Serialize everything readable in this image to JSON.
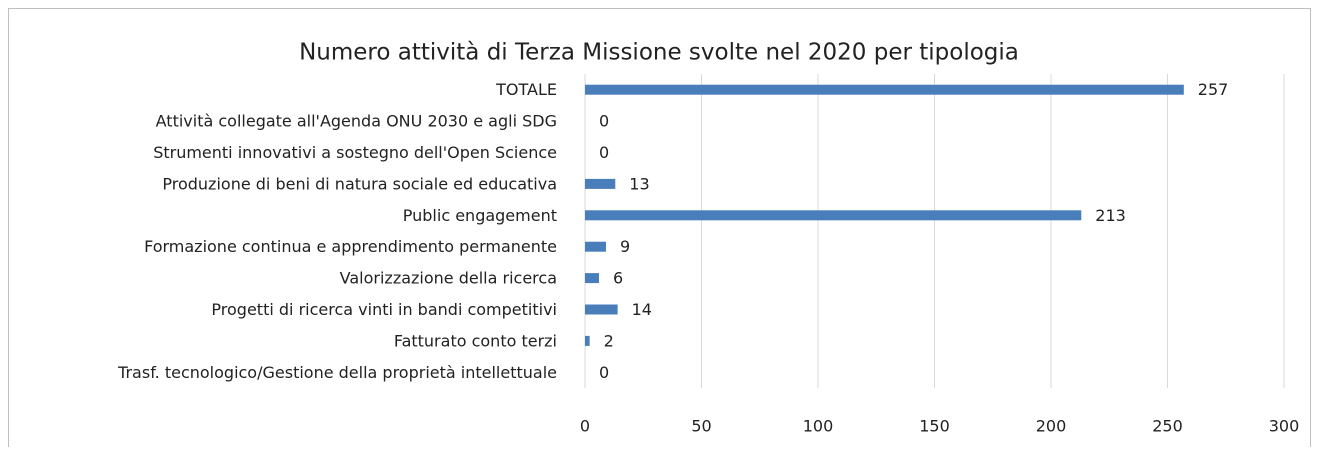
{
  "chart_data": {
    "type": "bar",
    "orientation": "horizontal",
    "title": "Numero attività di Terza Missione svolte nel 2020 per tipologia",
    "categories": [
      "TOTALE",
      "Attività collegate all'Agenda ONU 2030 e agli SDG",
      "Strumenti innovativi a sostegno dell'Open Science",
      "Produzione di beni di natura sociale ed educativa",
      "Public engagement",
      "Formazione continua e apprendimento permanente",
      "Valorizzazione della ricerca",
      "Progetti di ricerca vinti in bandi competitivi",
      "Fatturato conto terzi",
      "Trasf. tecnologico/Gestione della proprietà intellettuale"
    ],
    "values": [
      257,
      0,
      0,
      13,
      213,
      9,
      6,
      14,
      2,
      0
    ],
    "color": "#4a7ebb",
    "xlim": [
      0,
      300
    ],
    "xticks": [
      0,
      50,
      100,
      150,
      200,
      250,
      300
    ],
    "grid": true
  }
}
